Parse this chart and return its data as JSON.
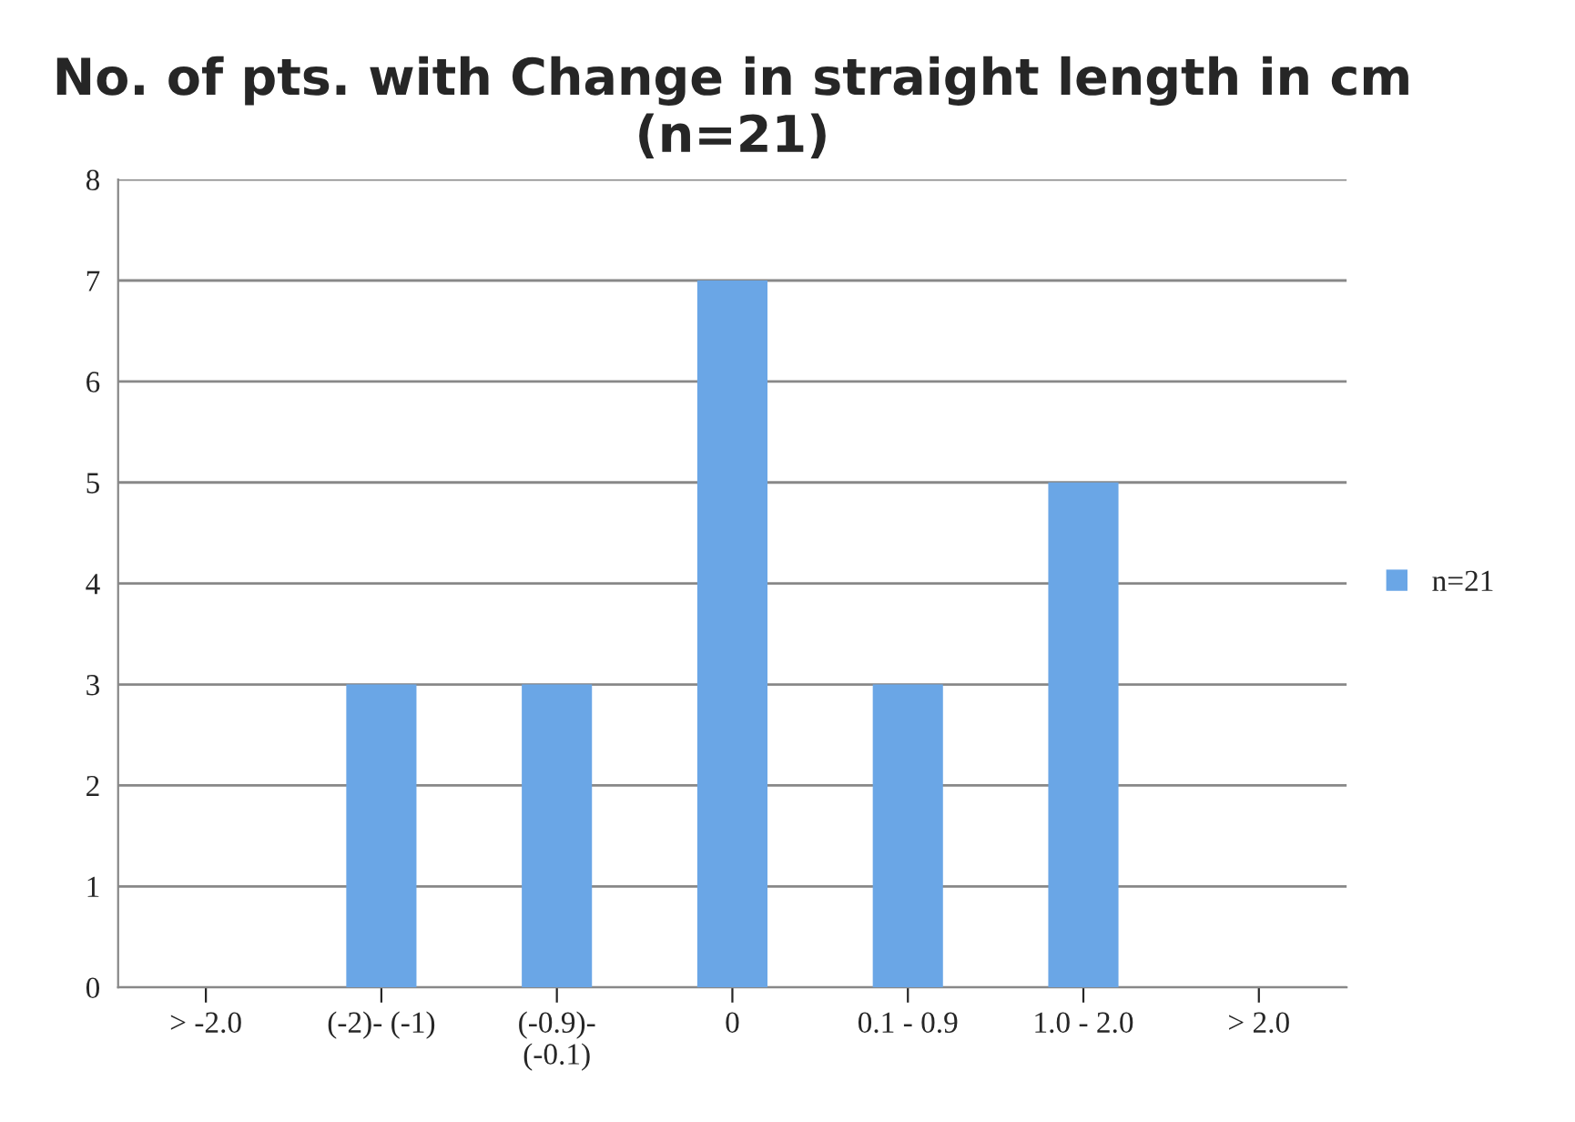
{
  "chart_data": {
    "type": "bar",
    "title": "No. of pts. with Change in straight length in cm (n=21)",
    "categories": [
      "> -2.0",
      "(-2)- (-1)",
      "(-0.9)-\n(-0.1)",
      "0",
      "0.1 - 0.9",
      "1.0 - 2.0",
      "> 2.0"
    ],
    "series": [
      {
        "name": "n=21",
        "color": "#6aa6e6",
        "values": [
          0,
          3,
          3,
          7,
          3,
          5,
          0
        ]
      }
    ],
    "ylim": [
      0,
      8
    ],
    "yticks": [
      0,
      1,
      2,
      3,
      4,
      5,
      6,
      7,
      8
    ],
    "grid": "y",
    "legend": "right"
  }
}
